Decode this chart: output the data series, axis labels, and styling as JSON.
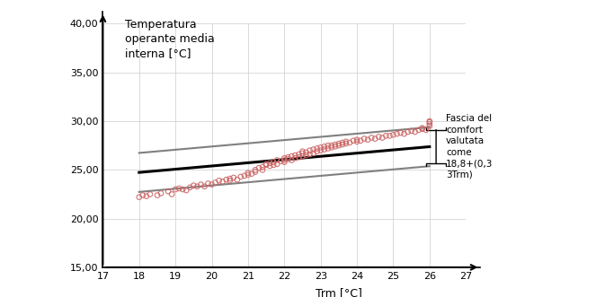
{
  "xlabel": "Trm [°C]",
  "ylabel": "Temperatura\noperante media\ninterna [°C]",
  "xlim": [
    17,
    27
  ],
  "ylim": [
    15,
    40
  ],
  "xticks": [
    17,
    18,
    19,
    20,
    21,
    22,
    23,
    24,
    25,
    26,
    27
  ],
  "yticks": [
    15.0,
    20.0,
    25.0,
    30.0,
    35.0,
    40.0
  ],
  "ytick_labels": [
    "15,00",
    "20,00",
    "25,00",
    "30,00",
    "35,00",
    "40,00"
  ],
  "comfort_formula": {
    "intercept": 18.8,
    "slope": 0.33
  },
  "comfort_band": 2.0,
  "annotation": "Fascia del\ncomfort\nvalutata\ncome\n18,8+(0,3\n3Trm)",
  "scatter_edgecolor": "#cc6666",
  "line_color_center": "#000000",
  "line_color_band": "#808080",
  "scatter_data": [
    [
      18.0,
      22.2
    ],
    [
      18.1,
      22.4
    ],
    [
      18.2,
      22.3
    ],
    [
      18.3,
      22.5
    ],
    [
      18.5,
      22.4
    ],
    [
      18.6,
      22.6
    ],
    [
      18.8,
      22.8
    ],
    [
      18.9,
      22.5
    ],
    [
      19.0,
      23.0
    ],
    [
      19.1,
      23.1
    ],
    [
      19.2,
      23.0
    ],
    [
      19.3,
      22.9
    ],
    [
      19.4,
      23.2
    ],
    [
      19.5,
      23.4
    ],
    [
      19.6,
      23.3
    ],
    [
      19.7,
      23.5
    ],
    [
      19.8,
      23.3
    ],
    [
      19.9,
      23.6
    ],
    [
      20.0,
      23.5
    ],
    [
      20.1,
      23.7
    ],
    [
      20.2,
      23.9
    ],
    [
      20.3,
      23.8
    ],
    [
      20.4,
      24.0
    ],
    [
      20.5,
      23.9
    ],
    [
      20.5,
      24.1
    ],
    [
      20.6,
      24.2
    ],
    [
      20.7,
      24.0
    ],
    [
      20.8,
      24.3
    ],
    [
      20.9,
      24.4
    ],
    [
      21.0,
      24.5
    ],
    [
      21.0,
      24.7
    ],
    [
      21.1,
      24.6
    ],
    [
      21.2,
      24.8
    ],
    [
      21.2,
      25.0
    ],
    [
      21.3,
      25.2
    ],
    [
      21.4,
      25.0
    ],
    [
      21.4,
      25.3
    ],
    [
      21.5,
      25.5
    ],
    [
      21.5,
      25.6
    ],
    [
      21.6,
      25.4
    ],
    [
      21.6,
      25.7
    ],
    [
      21.7,
      25.5
    ],
    [
      21.7,
      25.8
    ],
    [
      21.8,
      25.6
    ],
    [
      21.8,
      26.0
    ],
    [
      21.9,
      25.9
    ],
    [
      22.0,
      26.0
    ],
    [
      22.0,
      26.2
    ],
    [
      22.0,
      25.8
    ],
    [
      22.1,
      26.1
    ],
    [
      22.1,
      26.3
    ],
    [
      22.2,
      26.0
    ],
    [
      22.2,
      26.4
    ],
    [
      22.3,
      26.2
    ],
    [
      22.3,
      26.5
    ],
    [
      22.4,
      26.3
    ],
    [
      22.4,
      26.6
    ],
    [
      22.5,
      26.4
    ],
    [
      22.5,
      26.7
    ],
    [
      22.5,
      26.9
    ],
    [
      22.6,
      26.5
    ],
    [
      22.6,
      26.8
    ],
    [
      22.7,
      26.6
    ],
    [
      22.7,
      27.0
    ],
    [
      22.8,
      26.7
    ],
    [
      22.8,
      27.1
    ],
    [
      22.9,
      26.9
    ],
    [
      22.9,
      27.2
    ],
    [
      23.0,
      27.0
    ],
    [
      23.0,
      27.3
    ],
    [
      23.1,
      27.1
    ],
    [
      23.1,
      27.4
    ],
    [
      23.2,
      27.2
    ],
    [
      23.2,
      27.5
    ],
    [
      23.3,
      27.3
    ],
    [
      23.3,
      27.5
    ],
    [
      23.4,
      27.4
    ],
    [
      23.4,
      27.6
    ],
    [
      23.5,
      27.5
    ],
    [
      23.5,
      27.7
    ],
    [
      23.6,
      27.6
    ],
    [
      23.6,
      27.8
    ],
    [
      23.7,
      27.7
    ],
    [
      23.7,
      27.9
    ],
    [
      23.8,
      27.8
    ],
    [
      23.9,
      28.0
    ],
    [
      24.0,
      27.9
    ],
    [
      24.0,
      28.1
    ],
    [
      24.1,
      28.0
    ],
    [
      24.2,
      28.2
    ],
    [
      24.3,
      28.1
    ],
    [
      24.4,
      28.3
    ],
    [
      24.5,
      28.2
    ],
    [
      24.6,
      28.4
    ],
    [
      24.7,
      28.3
    ],
    [
      24.8,
      28.5
    ],
    [
      24.9,
      28.5
    ],
    [
      25.0,
      28.6
    ],
    [
      25.1,
      28.7
    ],
    [
      25.2,
      28.8
    ],
    [
      25.3,
      28.7
    ],
    [
      25.4,
      28.9
    ],
    [
      25.5,
      29.0
    ],
    [
      25.6,
      28.9
    ],
    [
      25.7,
      29.1
    ],
    [
      25.8,
      29.2
    ],
    [
      25.8,
      29.3
    ],
    [
      25.9,
      29.1
    ],
    [
      26.0,
      29.5
    ],
    [
      26.0,
      29.7
    ],
    [
      26.0,
      29.9
    ],
    [
      26.0,
      30.0
    ]
  ],
  "background_color": "#ffffff",
  "grid_color": "#cccccc"
}
